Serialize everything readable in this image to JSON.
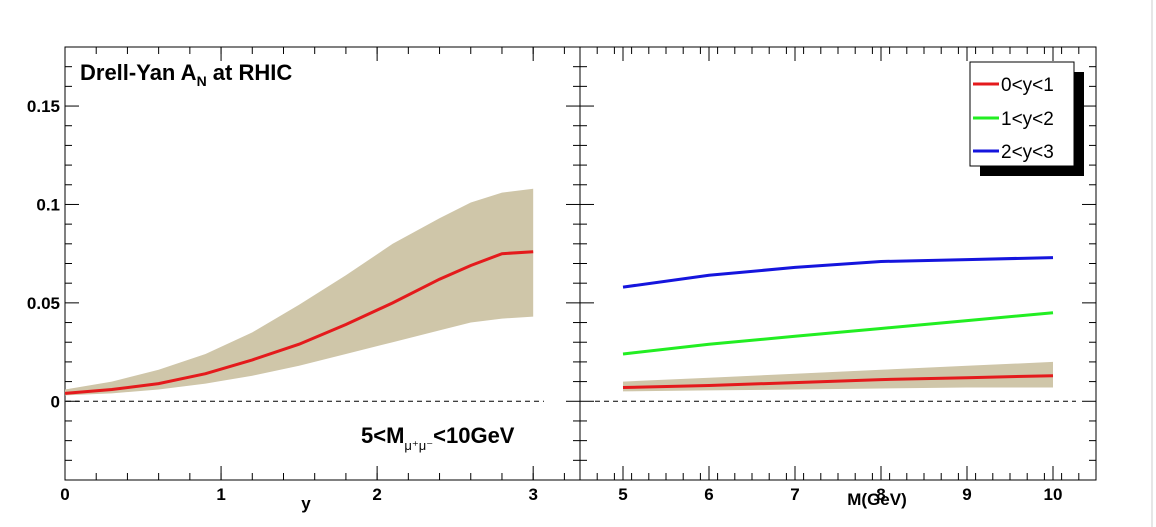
{
  "chart_data": [
    {
      "type": "line",
      "panel": "left",
      "title": "Drell-Yan A",
      "title_subscript": "N",
      "title_suffix": " at RHIC",
      "xlabel": "y",
      "ylabel": "",
      "annotation": {
        "prefix": "5<M",
        "subscript": "μ⁺μ⁻",
        "suffix": "<10GeV"
      },
      "xlim": [
        0,
        3.3
      ],
      "ylim": [
        -0.04,
        0.18
      ],
      "x_ticks": [
        "0",
        "1",
        "2",
        "3"
      ],
      "y_ticks": [
        "0",
        "0.05",
        "0.1",
        "0.15"
      ],
      "zero_line": "dashed",
      "band": {
        "color": "#cfc6a9",
        "x": [
          0,
          0.3,
          0.6,
          0.9,
          1.2,
          1.5,
          1.8,
          2.1,
          2.4,
          2.6,
          2.8,
          3.0
        ],
        "lower": [
          0.003,
          0.004,
          0.006,
          0.009,
          0.013,
          0.018,
          0.024,
          0.03,
          0.036,
          0.04,
          0.042,
          0.043
        ],
        "upper": [
          0.006,
          0.01,
          0.016,
          0.024,
          0.035,
          0.049,
          0.064,
          0.08,
          0.093,
          0.101,
          0.106,
          0.108
        ]
      },
      "series": [
        {
          "color": "#e41a1c",
          "x": [
            0,
            0.3,
            0.6,
            0.9,
            1.2,
            1.5,
            1.8,
            2.1,
            2.4,
            2.6,
            2.8,
            3.0
          ],
          "values": [
            0.004,
            0.006,
            0.009,
            0.014,
            0.021,
            0.029,
            0.039,
            0.05,
            0.062,
            0.069,
            0.075,
            0.076
          ]
        }
      ]
    },
    {
      "type": "line",
      "panel": "right",
      "xlabel": "M(GeV)",
      "xlim": [
        4.5,
        10.5
      ],
      "ylim": [
        -0.04,
        0.18
      ],
      "x_ticks": [
        "5",
        "6",
        "7",
        "8",
        "9",
        "10"
      ],
      "zero_line": "dashed",
      "legend": "top-right",
      "band": {
        "color": "#cfc6a9",
        "x": [
          5,
          6,
          7,
          8,
          9,
          10
        ],
        "lower": [
          0.005,
          0.0055,
          0.006,
          0.0065,
          0.007,
          0.007
        ],
        "upper": [
          0.01,
          0.012,
          0.014,
          0.016,
          0.018,
          0.02
        ]
      },
      "series": [
        {
          "name": "0<y<1",
          "color": "#e41a1c",
          "x": [
            5,
            6,
            7,
            8,
            9,
            10
          ],
          "values": [
            0.007,
            0.008,
            0.0095,
            0.011,
            0.012,
            0.013
          ]
        },
        {
          "name": "1<y<2",
          "color": "#22ee22",
          "x": [
            5,
            6,
            7,
            8,
            9,
            10
          ],
          "values": [
            0.024,
            0.029,
            0.033,
            0.037,
            0.041,
            0.045
          ]
        },
        {
          "name": "2<y<3",
          "color": "#1515dd",
          "x": [
            5,
            6,
            7,
            8,
            9,
            10
          ],
          "values": [
            0.058,
            0.064,
            0.068,
            0.071,
            0.072,
            0.073
          ]
        }
      ]
    }
  ]
}
